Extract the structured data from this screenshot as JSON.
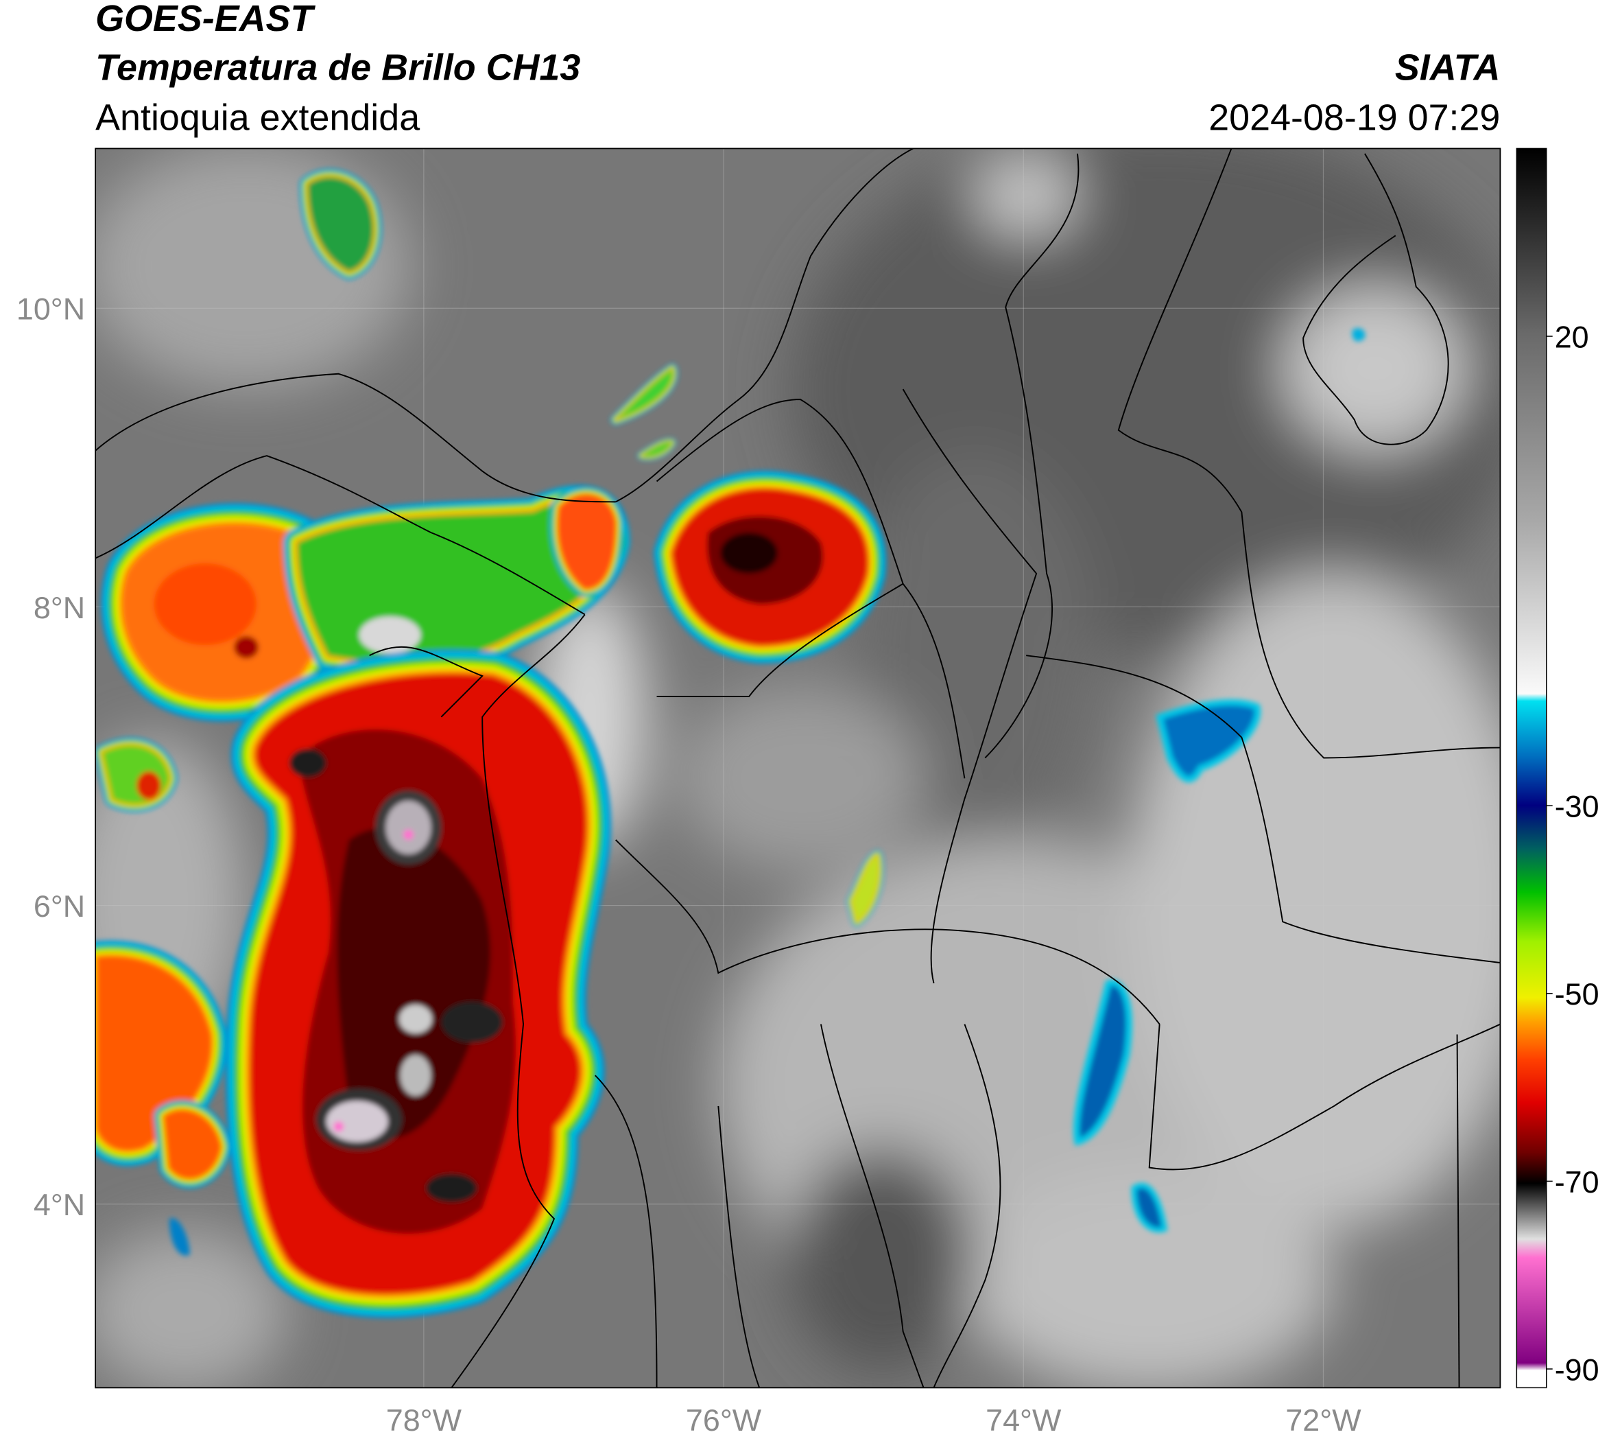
{
  "header": {
    "title": "GOES-EAST",
    "subtitle": "Temperatura de Brillo CH13",
    "region": "Antioquia extendida",
    "source": "SIATA",
    "timestamp": "2024-08-19 07:29"
  },
  "map": {
    "xlim": [
      -80.19,
      -70.82
    ],
    "ylim": [
      2.77,
      11.07
    ],
    "grid": true,
    "xticks": [
      {
        "value": -78,
        "label": "78°W"
      },
      {
        "value": -76,
        "label": "76°W"
      },
      {
        "value": -74,
        "label": "74°W"
      },
      {
        "value": -72,
        "label": "72°W"
      }
    ],
    "yticks": [
      {
        "value": 4,
        "label": "4°N"
      },
      {
        "value": 6,
        "label": "6°N"
      },
      {
        "value": 8,
        "label": "8°N"
      },
      {
        "value": 10,
        "label": "10°N"
      }
    ]
  },
  "colorbar": {
    "clim": [
      -92,
      40
    ],
    "ticks": [
      20,
      -30,
      -50,
      -70,
      -90
    ]
  }
}
